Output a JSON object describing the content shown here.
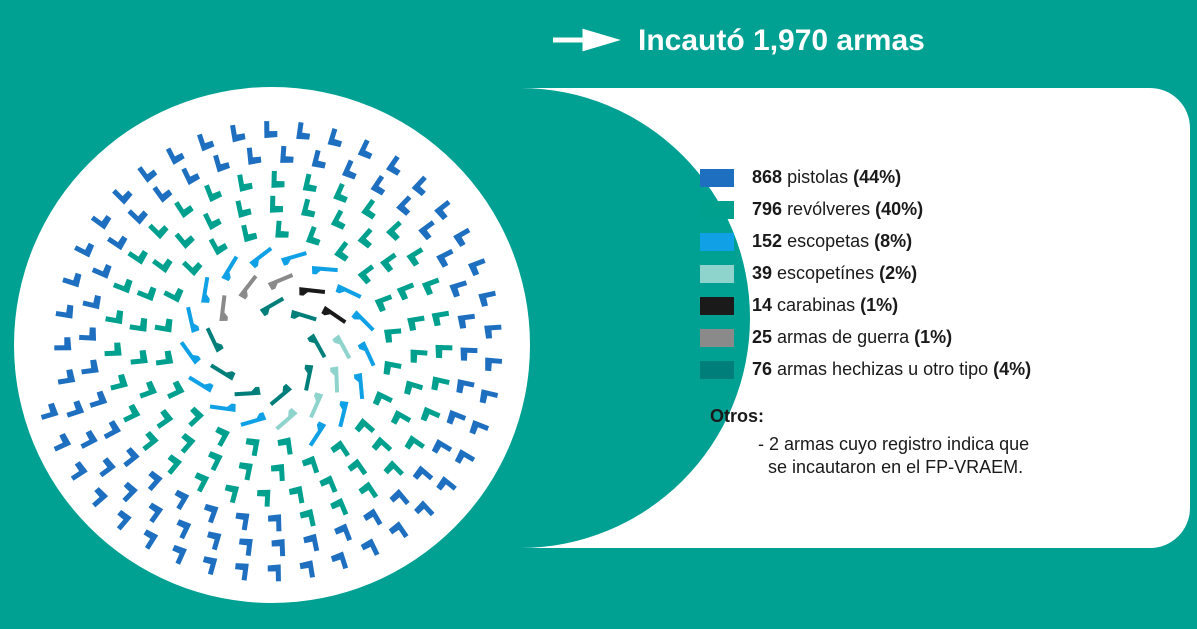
{
  "chart_data": {
    "type": "pictogram-spiral",
    "title": "Incautó 1,970 armas",
    "categories": [
      "pistolas",
      "revólveres",
      "escopetas",
      "escopetínes",
      "carabinas",
      "armas de guerra",
      "armas hechizas u otro tipo"
    ],
    "values": [
      868,
      796,
      152,
      39,
      14,
      25,
      76
    ],
    "shares": [
      44,
      40,
      8,
      2,
      1,
      1,
      4
    ],
    "share_labels": [
      "(44%)",
      "(40%)",
      "(8%)",
      "(2%)",
      "(1%)",
      "(1%)",
      "(4%)"
    ],
    "colors": [
      "#1f6fc0",
      "#00a08f",
      "#0fa0e6",
      "#8fd3cd",
      "#1a1a1a",
      "#8a8a8a",
      "#007f7a"
    ],
    "others_title": "Otros:",
    "others_lines": [
      "- 2 armas cuyo registro indica que",
      "se incautaron en el FP-VRAEM."
    ]
  }
}
